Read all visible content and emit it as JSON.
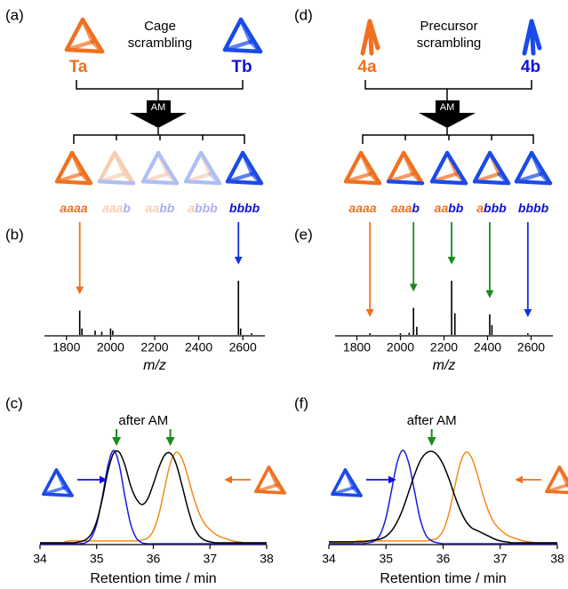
{
  "schemes": [
    {
      "label": "(a)",
      "title_lines": [
        "Cage",
        "scrambling"
      ],
      "left": "Ta",
      "right": "Tb",
      "process": "AM",
      "icon": "cage",
      "products": [
        "aaaa",
        "aaab",
        "aabb",
        "abbb",
        "bbbb"
      ],
      "faded": [
        false,
        true,
        true,
        true,
        false
      ]
    },
    {
      "label": "(d)",
      "title_lines": [
        "Precursor",
        "scrambling"
      ],
      "left": "4a",
      "right": "4b",
      "process": "AM",
      "icon": "precursor",
      "products": [
        "aaaa",
        "aaab",
        "aabb",
        "abbb",
        "bbbb"
      ],
      "faded": [
        false,
        false,
        false,
        false,
        false
      ]
    }
  ],
  "chart_data": [
    {
      "type": "spectrum",
      "label": "(b)",
      "xlabel": "m/z",
      "xlim": [
        1700,
        2700
      ],
      "xticks": [
        1800,
        2000,
        2200,
        2400,
        2600
      ],
      "ylim": [
        0,
        100
      ],
      "color": "#000000",
      "x": [
        1860,
        1870,
        1930,
        1960,
        2000,
        2010,
        2580,
        2590,
        2640
      ],
      "values": [
        45,
        12,
        8,
        6,
        12,
        8,
        100,
        12,
        3
      ],
      "markers": {
        "x": [
          1860,
          2580
        ],
        "colors": [
          "#f07020",
          "#1030e8"
        ]
      }
    },
    {
      "type": "spectrum",
      "label": "(e)",
      "xlabel": "m/z",
      "xlim": [
        1700,
        2700
      ],
      "xticks": [
        1800,
        2000,
        2200,
        2400,
        2600
      ],
      "ylim": [
        0,
        100
      ],
      "color": "#000000",
      "x": [
        1860,
        2000,
        2040,
        2060,
        2075,
        2235,
        2250,
        2410,
        2420,
        2585
      ],
      "values": [
        3,
        3,
        4,
        50,
        15,
        100,
        40,
        38,
        18,
        3
      ],
      "markers": {
        "x": [
          1860,
          2060,
          2235,
          2410,
          2585
        ],
        "colors": [
          "#f07020",
          "#1a8a1a",
          "#1a8a1a",
          "#1a8a1a",
          "#1030e8"
        ]
      }
    },
    {
      "type": "line",
      "label": "(c)",
      "annotation": "after AM",
      "annotation_x": [
        35.35,
        36.3
      ],
      "xlabel": "Retention time / min",
      "xlim": [
        34,
        38
      ],
      "xticks": [
        34,
        35,
        36,
        37,
        38
      ],
      "ylim": [
        0,
        100
      ],
      "x": [
        34.0,
        34.1,
        34.2,
        34.3,
        34.4,
        34.5,
        34.6,
        34.7,
        34.8,
        34.9,
        35.0,
        35.1,
        35.2,
        35.3,
        35.4,
        35.5,
        35.6,
        35.7,
        35.8,
        35.9,
        36.0,
        36.1,
        36.2,
        36.3,
        36.4,
        36.5,
        36.6,
        36.7,
        36.8,
        36.9,
        37.0,
        37.1,
        37.2,
        37.3,
        37.4,
        37.5,
        37.6,
        37.7,
        37.8,
        37.9,
        38.0
      ],
      "series": [
        {
          "color": "#f28a1a",
          "values": [
            1,
            1,
            1,
            1,
            1,
            3,
            3,
            3,
            3,
            3,
            3,
            3,
            3,
            3,
            3,
            3,
            3,
            3,
            4,
            6,
            14,
            32,
            60,
            86,
            98,
            92,
            74,
            52,
            34,
            22,
            15,
            10,
            7,
            5,
            3,
            2,
            1,
            1,
            1,
            1,
            1
          ]
        },
        {
          "color": "#1a1ae0",
          "values": [
            0,
            0,
            0,
            0,
            0,
            0,
            0,
            0,
            1,
            6,
            21,
            50,
            84,
            100,
            84,
            50,
            21,
            6,
            1,
            0,
            0,
            0,
            0,
            0,
            0,
            0,
            0,
            0,
            0,
            0,
            0,
            0,
            0,
            0,
            0,
            0,
            0,
            0,
            0,
            0,
            0
          ]
        },
        {
          "color": "#000000",
          "values": [
            1,
            1,
            1,
            1,
            1,
            1,
            1,
            2,
            4,
            10,
            24,
            48,
            78,
            97,
            98,
            84,
            62,
            48,
            42,
            48,
            64,
            82,
            95,
            97,
            86,
            64,
            40,
            20,
            9,
            4,
            2,
            1,
            1,
            1,
            1,
            1,
            1,
            1,
            1,
            1,
            1
          ]
        }
      ]
    },
    {
      "type": "line",
      "label": "(f)",
      "annotation": "after AM",
      "annotation_x": [
        35.8
      ],
      "xlabel": "Retention time / min",
      "xlim": [
        34,
        38
      ],
      "xticks": [
        34,
        35,
        36,
        37,
        38
      ],
      "ylim": [
        0,
        100
      ],
      "x": [
        34.0,
        34.1,
        34.2,
        34.3,
        34.4,
        34.5,
        34.6,
        34.7,
        34.8,
        34.9,
        35.0,
        35.1,
        35.2,
        35.3,
        35.4,
        35.5,
        35.6,
        35.7,
        35.8,
        35.9,
        36.0,
        36.1,
        36.2,
        36.3,
        36.4,
        36.5,
        36.6,
        36.7,
        36.8,
        36.9,
        37.0,
        37.1,
        37.2,
        37.3,
        37.4,
        37.5,
        37.6,
        37.7,
        37.8,
        37.9,
        38.0
      ],
      "series": [
        {
          "color": "#f28a1a",
          "values": [
            1,
            1,
            1,
            1,
            1,
            3,
            3,
            3,
            3,
            3,
            3,
            3,
            3,
            3,
            3,
            3,
            3,
            3,
            4,
            6,
            14,
            32,
            60,
            86,
            98,
            92,
            74,
            52,
            34,
            22,
            15,
            10,
            7,
            5,
            3,
            2,
            1,
            1,
            1,
            1,
            1
          ]
        },
        {
          "color": "#1a1ae0",
          "values": [
            0,
            0,
            0,
            0,
            0,
            0,
            0,
            1,
            3,
            10,
            28,
            58,
            88,
            100,
            86,
            56,
            26,
            9,
            3,
            1,
            0,
            0,
            0,
            0,
            0,
            0,
            0,
            0,
            0,
            0,
            0,
            0,
            0,
            0,
            0,
            0,
            0,
            0,
            0,
            0,
            0
          ]
        },
        {
          "color": "#000000",
          "values": [
            2,
            2,
            2,
            2,
            2,
            2,
            2,
            3,
            4,
            5,
            8,
            14,
            24,
            38,
            56,
            74,
            89,
            97,
            99,
            95,
            85,
            70,
            52,
            36,
            24,
            17,
            14,
            11,
            8,
            5,
            3,
            2,
            1,
            1,
            1,
            1,
            1,
            1,
            1,
            1,
            1
          ]
        }
      ]
    }
  ]
}
